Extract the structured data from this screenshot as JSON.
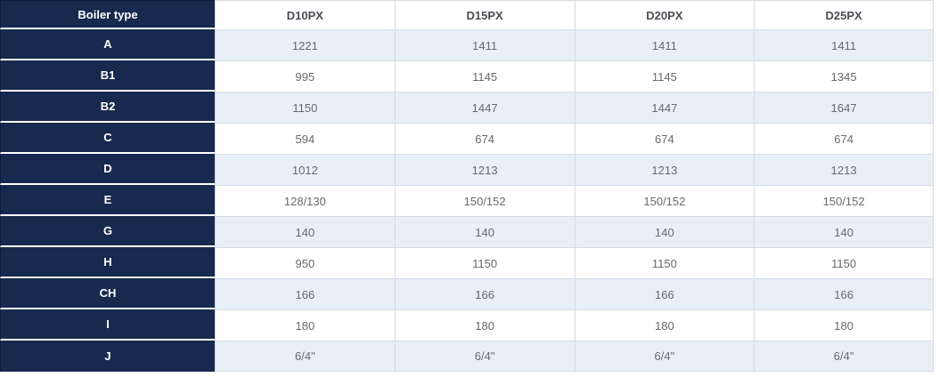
{
  "chart_data": {
    "type": "table",
    "header": {
      "row_label_column": "Boiler type",
      "columns": [
        "D10PX",
        "D15PX",
        "D20PX",
        "D25PX"
      ]
    },
    "rows": [
      {
        "label": "A",
        "values": [
          "1221",
          "1411",
          "1411",
          "1411"
        ]
      },
      {
        "label": "B1",
        "values": [
          "995",
          "1145",
          "1145",
          "1345"
        ]
      },
      {
        "label": "B2",
        "values": [
          "1150",
          "1447",
          "1447",
          "1647"
        ]
      },
      {
        "label": "C",
        "values": [
          "594",
          "674",
          "674",
          "674"
        ]
      },
      {
        "label": "D",
        "values": [
          "1012",
          "1213",
          "1213",
          "1213"
        ]
      },
      {
        "label": "E",
        "values": [
          "128/130",
          "150/152",
          "150/152",
          "150/152"
        ]
      },
      {
        "label": "G",
        "values": [
          "140",
          "140",
          "140",
          "140"
        ]
      },
      {
        "label": "H",
        "values": [
          "950",
          "1150",
          "1150",
          "1150"
        ]
      },
      {
        "label": "CH",
        "values": [
          "166",
          "166",
          "166",
          "166"
        ]
      },
      {
        "label": "I",
        "values": [
          "180",
          "180",
          "180",
          "180"
        ]
      },
      {
        "label": "J",
        "values": [
          "6/4\"",
          "6/4\"",
          "6/4\"",
          "6/4\""
        ]
      }
    ]
  },
  "colors": {
    "header_bg": "#17294e",
    "header_text": "#ffffff",
    "header_edge": "#0e1d3a",
    "col_header_text": "#4a4e54",
    "value_text": "#66696d",
    "shaded_bg": "#e9eff8",
    "plain_bg": "#ffffff",
    "grid_border": "#d6dbe1",
    "gap_white": "#ffffff"
  }
}
